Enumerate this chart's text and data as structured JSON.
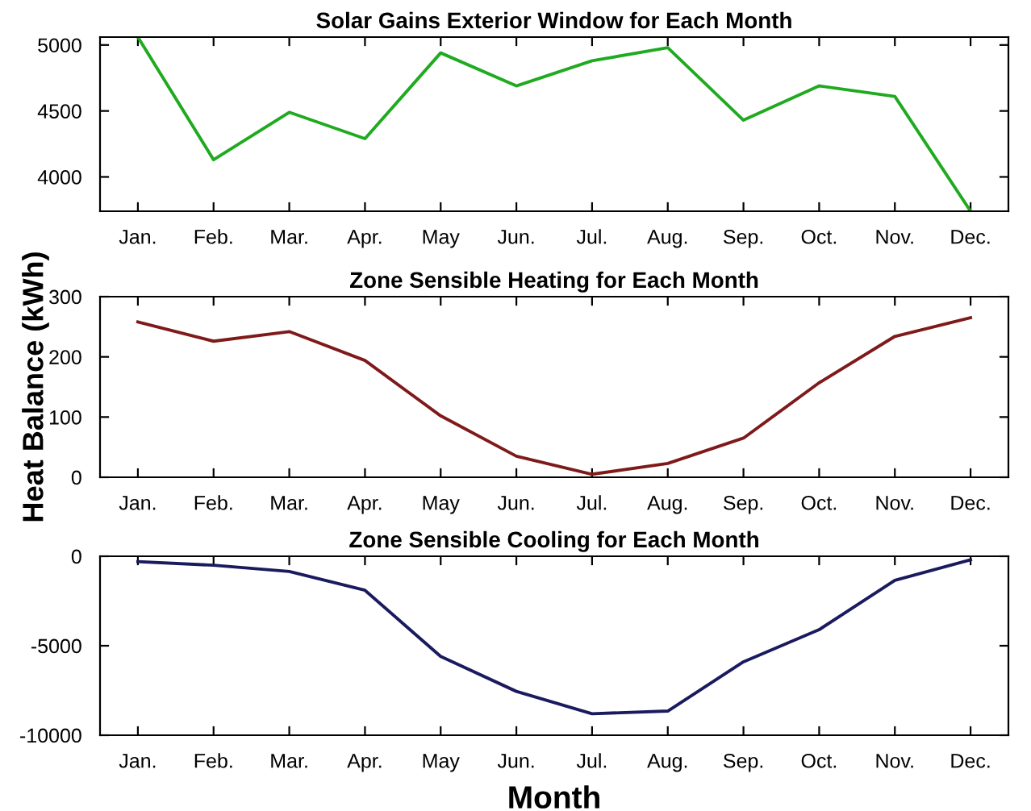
{
  "chart_data": [
    {
      "type": "line",
      "title": "Solar Gains Exterior Window for Each Month",
      "categories": [
        "Jan.",
        "Feb.",
        "Mar.",
        "Apr.",
        "May",
        "Jun.",
        "Jul.",
        "Aug.",
        "Sep.",
        "Oct.",
        "Nov.",
        "Dec."
      ],
      "series": [
        {
          "color": "#1faa1f",
          "values": [
            5060,
            4130,
            4490,
            4290,
            4940,
            4690,
            4880,
            4980,
            4430,
            4690,
            4610,
            3740
          ]
        }
      ],
      "ylim": [
        3740,
        5060
      ],
      "yticks": [
        4000,
        4500,
        5000
      ],
      "grid": false,
      "marker": "none",
      "line_style": "solid"
    },
    {
      "type": "line",
      "title": "Zone Sensible Heating for Each Month",
      "ylabel": "Heat Balance (kWh)",
      "categories": [
        "Jan.",
        "Feb.",
        "Mar.",
        "Apr.",
        "May",
        "Jun.",
        "Jul.",
        "Aug.",
        "Sep.",
        "Oct.",
        "Nov.",
        "Dec."
      ],
      "series": [
        {
          "color": "#7f1a1a",
          "values": [
            258,
            226,
            242,
            194,
            102,
            35,
            5,
            23,
            65,
            157,
            234,
            265
          ]
        }
      ],
      "ylim": [
        0,
        300
      ],
      "yticks": [
        0,
        100,
        200,
        300
      ],
      "grid": false,
      "marker": "none",
      "line_style": "solid"
    },
    {
      "type": "line",
      "title": "Zone Sensible Cooling for Each Month",
      "xlabel": "Month",
      "categories": [
        "Jan.",
        "Feb.",
        "Mar.",
        "Apr.",
        "May",
        "Jun.",
        "Jul.",
        "Aug.",
        "Sep.",
        "Oct.",
        "Nov.",
        "Dec."
      ],
      "series": [
        {
          "color": "#1a1a5e",
          "values": [
            -300,
            -500,
            -850,
            -1900,
            -5600,
            -7550,
            -8800,
            -8650,
            -5900,
            -4100,
            -1350,
            -200
          ]
        }
      ],
      "ylim": [
        -10000,
        0
      ],
      "yticks": [
        -10000,
        -5000,
        0
      ],
      "grid": false,
      "marker": "none",
      "line_style": "solid"
    }
  ]
}
